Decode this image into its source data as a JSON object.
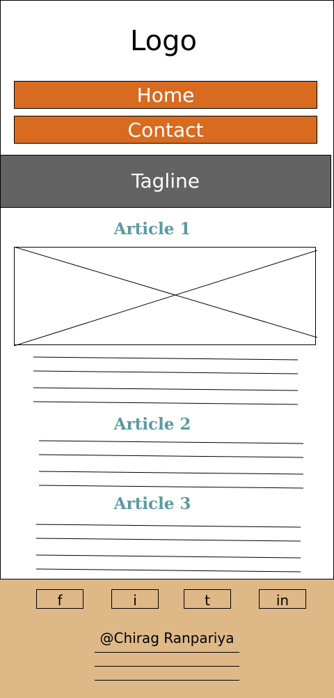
{
  "header": {
    "logo": "Logo"
  },
  "nav": {
    "items": [
      {
        "label": "Home"
      },
      {
        "label": "Contact"
      }
    ]
  },
  "banner": {
    "tagline": "Tagline"
  },
  "articles": [
    {
      "title": "Article 1"
    },
    {
      "title": "Article 2"
    },
    {
      "title": "Article 3"
    }
  ],
  "footer": {
    "social": [
      {
        "label": "f"
      },
      {
        "label": "i"
      },
      {
        "label": "t"
      },
      {
        "label": "in"
      }
    ],
    "credit": "@Chirag Ranpariya"
  },
  "colors": {
    "nav_bg": "#d86b20",
    "banner_bg": "#636363",
    "article_title": "#5b9aa0",
    "footer_bg": "#deb887"
  }
}
